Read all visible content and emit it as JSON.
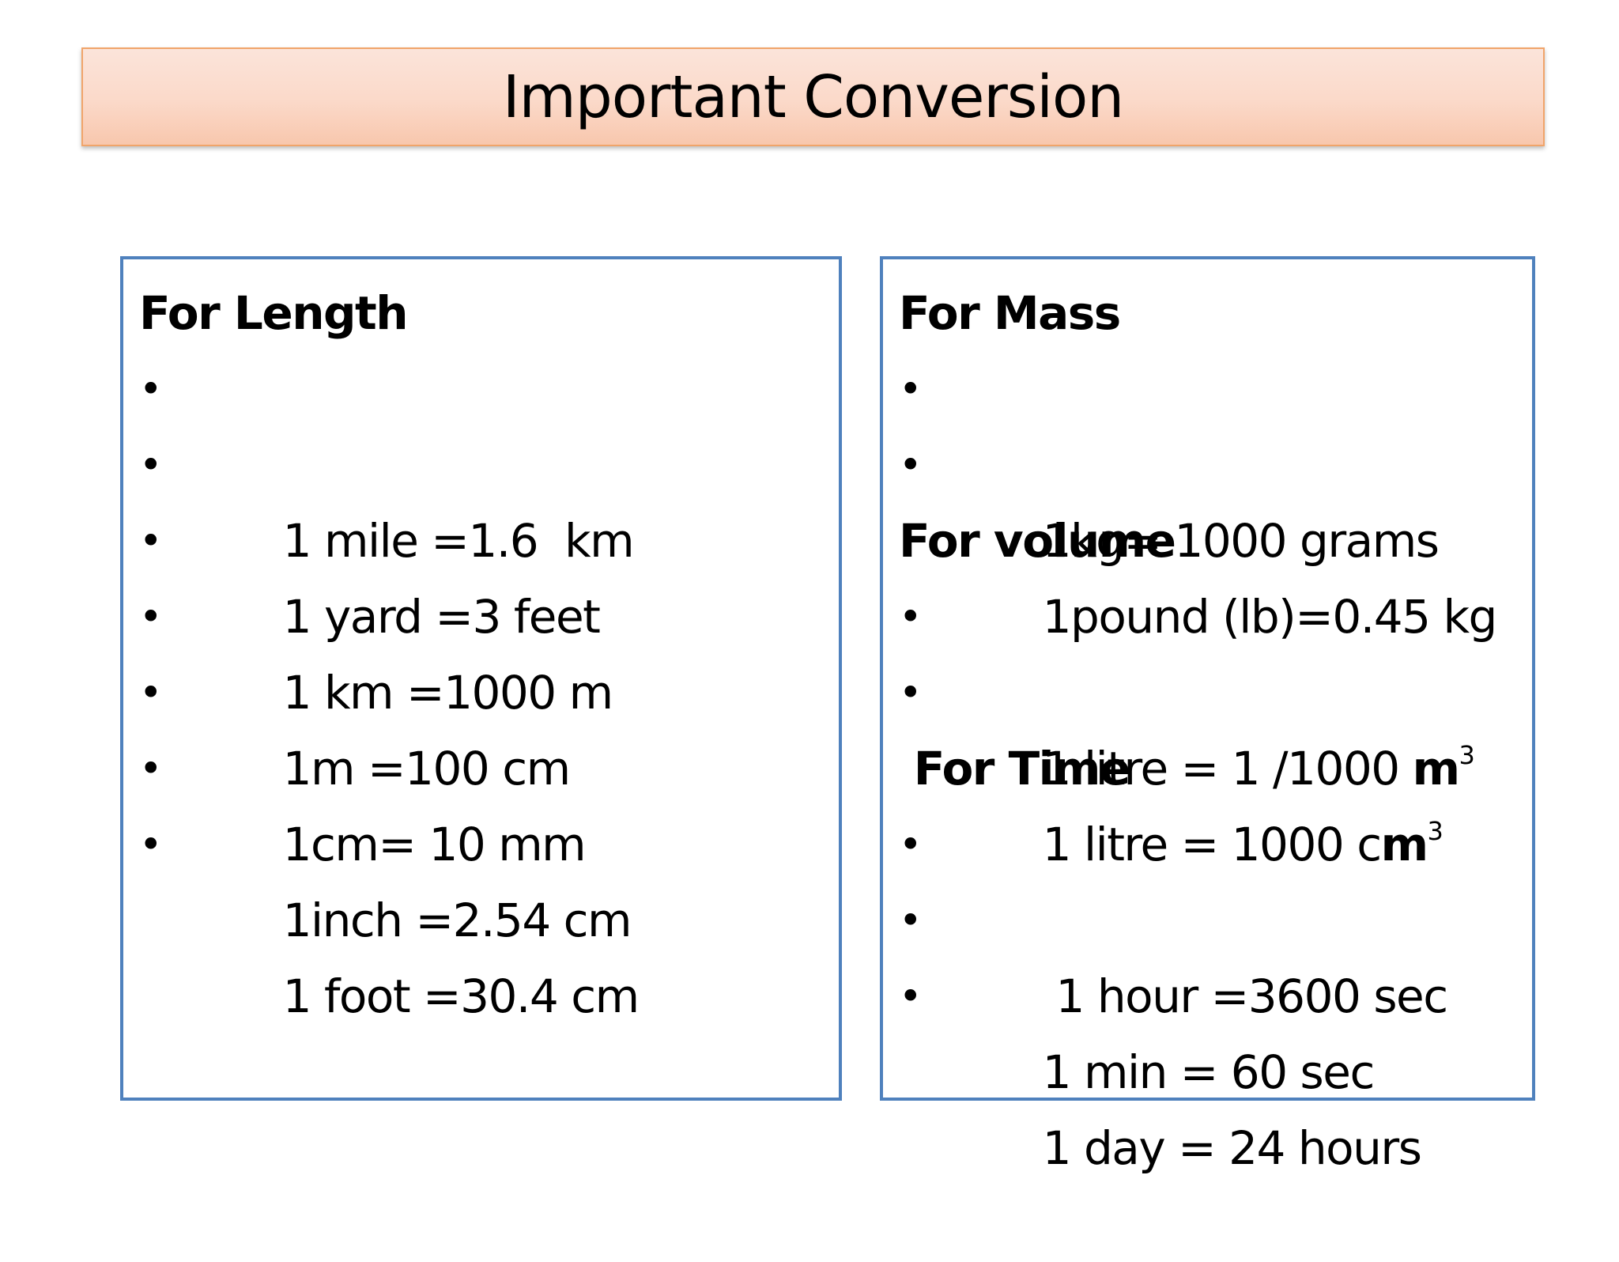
{
  "title": "Important Conversion",
  "bullet_char": "•",
  "left_panel": {
    "heading": "For Length",
    "items": [
      "1 mile =1.6  km",
      "1 yard =3 feet",
      "1 km =1000 m",
      "1m =100 cm",
      "1cm= 10 mm",
      "1inch =2.54 cm",
      "1 foot =30.4 cm"
    ]
  },
  "right_panel": {
    "mass": {
      "heading": "For Mass",
      "items": [
        "1kg= 1000 grams",
        "1pound (lb)=0.45 kg"
      ]
    },
    "volume": {
      "heading": "For volume",
      "items": [
        {
          "prefix": "1 litre = 1 /1000 ",
          "unit": "m",
          "superscript": "3"
        },
        {
          "prefix": "1 litre = 1000 c",
          "unit": "m",
          "superscript": "3"
        }
      ]
    },
    "time": {
      "heading": " For Time",
      "items": [
        " 1 hour =3600 sec",
        "1 min = 60 sec",
        "1 day = 24 hours"
      ]
    }
  }
}
